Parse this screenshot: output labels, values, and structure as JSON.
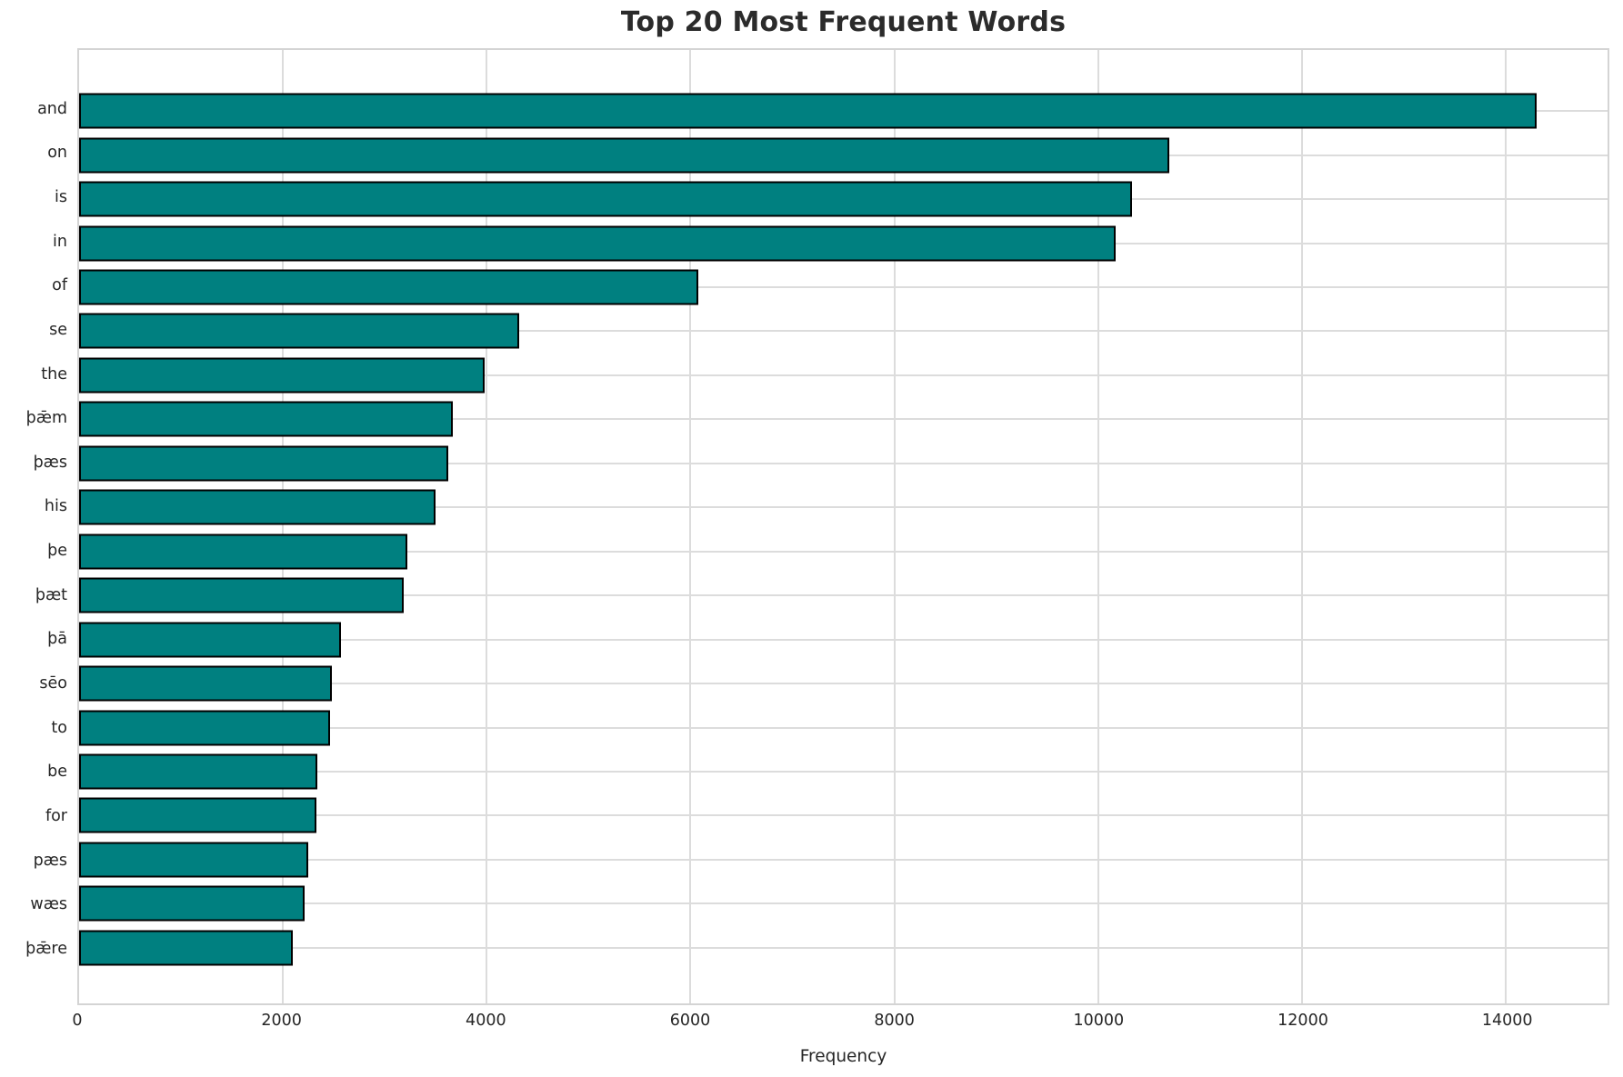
{
  "chart_data": {
    "type": "bar",
    "orientation": "horizontal",
    "title": "Top 20 Most Frequent Words",
    "xlabel": "Frequency",
    "ylabel": "",
    "categories": [
      "and",
      "on",
      "is",
      "in",
      "of",
      "se",
      "the",
      "þǣm",
      "þæs",
      "his",
      "þe",
      "þæt",
      "þā",
      "sēo",
      "to",
      "be",
      "for",
      "pæs",
      "wæs",
      "þǣre"
    ],
    "values": [
      14300,
      10700,
      10330,
      10170,
      6080,
      4320,
      3980,
      3670,
      3620,
      3500,
      3220,
      3190,
      2570,
      2480,
      2460,
      2340,
      2330,
      2250,
      2210,
      2100
    ],
    "x_ticks": [
      0,
      2000,
      4000,
      6000,
      8000,
      10000,
      12000,
      14000
    ],
    "xlim": [
      0,
      15000
    ],
    "grid": true,
    "legend": "none",
    "bar_color": "#008080",
    "bar_edge_color": "#000000",
    "grid_color": "#dcdcdc",
    "background_color": "#ffffff",
    "text_color": "#262626"
  }
}
